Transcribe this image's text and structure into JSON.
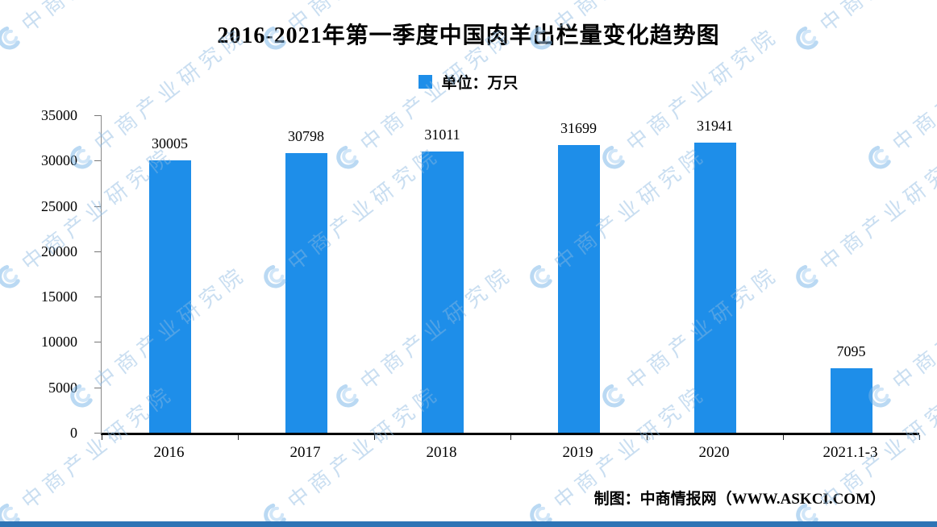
{
  "title": "2016-2021年第一季度中国肉羊出栏量变化趋势图",
  "legend": {
    "label": "单位：万只"
  },
  "footer": {
    "credit": "制图：中商情报网（WWW.ASKCI.COM）"
  },
  "watermark": {
    "text": "中商产业研究院"
  },
  "colors": {
    "bar": "#1E8EE9",
    "bottom_strip": "#2E74B5",
    "watermark_text": "rgba(139,184,224,0.55)"
  },
  "chart_data": {
    "type": "bar",
    "title": "2016-2021年第一季度中国肉羊出栏量变化趋势图",
    "unit_legend": "单位：万只",
    "categories": [
      "2016",
      "2017",
      "2018",
      "2019",
      "2020",
      "2021.1-3"
    ],
    "values": [
      30005,
      30798,
      31011,
      31699,
      31941,
      7095
    ],
    "ylim": [
      0,
      35000
    ],
    "yticks": [
      0,
      5000,
      10000,
      15000,
      20000,
      25000,
      30000,
      35000
    ],
    "grid": false,
    "legend_position": "top-center",
    "bar_color": "#1E8EE9",
    "source": "制图：中商情报网（WWW.ASKCI.COM）"
  }
}
